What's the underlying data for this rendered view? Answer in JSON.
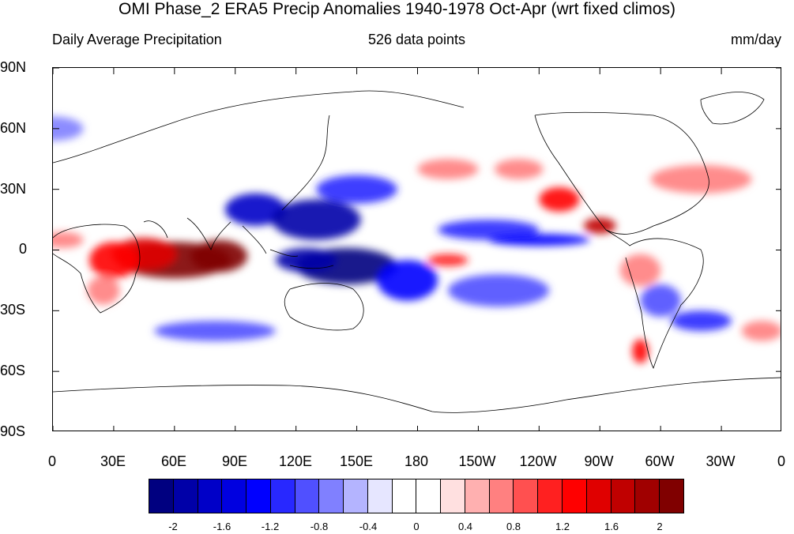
{
  "figure": {
    "title": "OMI Phase_2 ERA5 Precip Anomalies 1940-1978 Oct-Apr (wrt fixed climos)",
    "left_subtitle": "Daily Average Precipitation",
    "center_subtitle": "526 data points",
    "right_subtitle": "mm/day"
  },
  "axes": {
    "lat_labels": [
      "90N",
      "60N",
      "30N",
      "0",
      "30S",
      "60S",
      "90S"
    ],
    "lon_labels": [
      "0",
      "30E",
      "60E",
      "90E",
      "120E",
      "150E",
      "180",
      "150W",
      "120W",
      "90W",
      "60W",
      "30W",
      "0"
    ]
  },
  "colorbar": {
    "colors": [
      "#000080",
      "#0000a8",
      "#0000c8",
      "#0000e0",
      "#0000ff",
      "#2828ff",
      "#5050ff",
      "#8080ff",
      "#b4b4ff",
      "#e6e6ff",
      "#ffffff",
      "#ffffff",
      "#ffe0e0",
      "#ffb0b0",
      "#ff8080",
      "#ff5050",
      "#ff2020",
      "#ff0000",
      "#e00000",
      "#c00000",
      "#a00000",
      "#800000"
    ],
    "labels": [
      "-2",
      "-1.6",
      "-1.2",
      "-0.8",
      "-0.4",
      "0",
      "0.4",
      "0.8",
      "1.2",
      "1.6",
      "2"
    ]
  },
  "map_data": {
    "lon_range": [
      0,
      360
    ],
    "lat_range": [
      -90,
      90
    ],
    "anomalies": [
      {
        "lon": 60,
        "lat": -5,
        "rlon": 28,
        "rlat": 9,
        "value": 2.2
      },
      {
        "lon": 82,
        "lat": -3,
        "rlon": 14,
        "rlat": 8,
        "value": 2.2
      },
      {
        "lon": 45,
        "lat": -2,
        "rlon": 16,
        "rlat": 8,
        "value": 1.4
      },
      {
        "lon": 30,
        "lat": -5,
        "rlon": 12,
        "rlat": 9,
        "value": 1.2
      },
      {
        "lon": 25,
        "lat": -20,
        "rlon": 8,
        "rlat": 7,
        "value": 0.8
      },
      {
        "lon": 5,
        "lat": 5,
        "rlon": 10,
        "rlat": 4,
        "value": 0.8
      },
      {
        "lon": 100,
        "lat": 20,
        "rlon": 15,
        "rlat": 8,
        "value": -1.6
      },
      {
        "lon": 130,
        "lat": 15,
        "rlon": 22,
        "rlat": 10,
        "value": -1.8
      },
      {
        "lon": 145,
        "lat": -8,
        "rlon": 25,
        "rlat": 9,
        "value": -2.2
      },
      {
        "lon": 125,
        "lat": -5,
        "rlon": 15,
        "rlat": 6,
        "value": -1.8
      },
      {
        "lon": 175,
        "lat": -15,
        "rlon": 15,
        "rlat": 10,
        "value": -1.4
      },
      {
        "lon": 150,
        "lat": 30,
        "rlon": 20,
        "rlat": 7,
        "value": -1.2
      },
      {
        "lon": 215,
        "lat": 10,
        "rlon": 25,
        "rlat": 5,
        "value": -1.2
      },
      {
        "lon": 240,
        "lat": 5,
        "rlon": 25,
        "rlat": 3,
        "value": -1.4
      },
      {
        "lon": 230,
        "lat": 40,
        "rlon": 12,
        "rlat": 5,
        "value": 0.8
      },
      {
        "lon": 195,
        "lat": 40,
        "rlon": 15,
        "rlat": 5,
        "value": 0.8
      },
      {
        "lon": 250,
        "lat": 25,
        "rlon": 10,
        "rlat": 6,
        "value": 1.2
      },
      {
        "lon": 270,
        "lat": 12,
        "rlon": 8,
        "rlat": 4,
        "value": 1.6
      },
      {
        "lon": 320,
        "lat": 35,
        "rlon": 25,
        "rlat": 7,
        "value": 0.8
      },
      {
        "lon": 300,
        "lat": -25,
        "rlon": 10,
        "rlat": 8,
        "value": -1.0
      },
      {
        "lon": 320,
        "lat": -35,
        "rlon": 15,
        "rlat": 5,
        "value": -1.2
      },
      {
        "lon": 195,
        "lat": -5,
        "rlon": 10,
        "rlat": 3,
        "value": 1.0
      },
      {
        "lon": 220,
        "lat": -20,
        "rlon": 25,
        "rlat": 8,
        "value": -1.0
      },
      {
        "lon": 290,
        "lat": -10,
        "rlon": 10,
        "rlat": 8,
        "value": 0.8
      },
      {
        "lon": 350,
        "lat": -40,
        "rlon": 10,
        "rlat": 5,
        "value": 0.8
      },
      {
        "lon": 80,
        "lat": -40,
        "rlon": 30,
        "rlat": 5,
        "value": -0.8
      },
      {
        "lon": 290,
        "lat": -50,
        "rlon": 4,
        "rlat": 6,
        "value": 1.2
      },
      {
        "lon": 0,
        "lat": 60,
        "rlon": 15,
        "rlat": 6,
        "value": -0.6
      }
    ]
  }
}
